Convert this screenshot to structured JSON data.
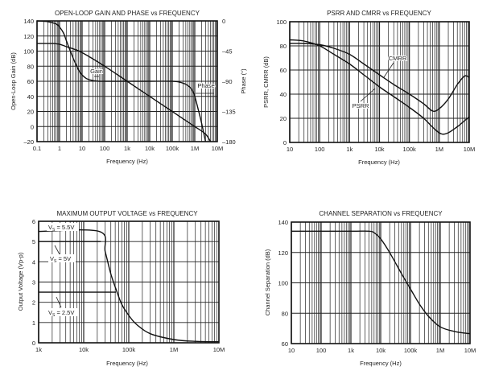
{
  "chart_data": [
    {
      "type": "line",
      "title": "OPEN-LOOP GAIN AND PHASE vs FREQUENCY",
      "xlabel": "Frequency (Hz)",
      "ylabel": "Open-Loop Gain (dB)",
      "y2label": "Phase (°)",
      "xscale": "log",
      "xlim": [
        0.1,
        10000000
      ],
      "ylim": [
        -20,
        140
      ],
      "y2lim": [
        -180,
        0
      ],
      "grid": true,
      "xticks": [
        "0.1",
        "1",
        "10",
        "100",
        "1k",
        "10k",
        "100k",
        "1M",
        "10M"
      ],
      "yticks": [
        "140",
        "120",
        "100",
        "80",
        "60",
        "40",
        "20",
        "0",
        "–20"
      ],
      "y2ticks": [
        "0",
        "–45",
        "–90",
        "–135",
        "–180"
      ],
      "series": [
        {
          "name": "Gain",
          "x": [
            0.1,
            0.3,
            0.7,
            1,
            1.5,
            2,
            3,
            5,
            8,
            15,
            30,
            60,
            100,
            1000,
            10000,
            100000,
            200000,
            400000,
            700000,
            1000000,
            1500000,
            2000000,
            3000000
          ],
          "y": [
            140,
            139,
            136,
            132,
            124,
            114,
            100,
            84,
            72,
            64,
            61,
            60,
            60,
            60,
            60,
            60,
            59,
            56,
            50,
            40,
            20,
            5,
            -20
          ]
        },
        {
          "name": "Phase",
          "x": [
            0.1,
            0.5,
            1,
            2,
            4,
            10,
            100,
            1000,
            10000,
            100000,
            1000000,
            3000000,
            5000000
          ],
          "y": [
            110,
            110,
            109,
            106,
            103,
            98,
            80,
            60,
            40,
            20,
            0,
            -10,
            -20
          ]
        }
      ],
      "annotations": [
        "Gain",
        "Phase"
      ]
    },
    {
      "type": "line",
      "title": "PSRR AND CMRR vs FREQUENCY",
      "xlabel": "Frequency (Hz)",
      "ylabel": "PSRR, CMRR (dB)",
      "xscale": "log",
      "xlim": [
        10,
        10000000
      ],
      "ylim": [
        0,
        100
      ],
      "grid": true,
      "xticks": [
        "10",
        "100",
        "1k",
        "10k",
        "100k",
        "1M",
        "10M"
      ],
      "yticks": [
        "100",
        "80",
        "60",
        "40",
        "20",
        "0"
      ],
      "series": [
        {
          "name": "CMRR",
          "x": [
            10,
            30,
            100,
            300,
            1000,
            3000,
            10000,
            30000,
            100000,
            300000,
            600000,
            1000000,
            2000000,
            4000000,
            7000000,
            10000000
          ],
          "y": [
            82,
            82,
            81,
            78,
            73,
            65,
            56,
            48,
            40,
            32,
            26,
            28,
            36,
            48,
            55,
            54
          ]
        },
        {
          "name": "PSRR",
          "x": [
            10,
            30,
            100,
            300,
            1000,
            3000,
            10000,
            30000,
            100000,
            300000,
            700000,
            1200000,
            2000000,
            4000000,
            7000000,
            10000000
          ],
          "y": [
            85,
            84,
            80,
            73,
            65,
            56,
            46,
            38,
            29,
            20,
            11,
            7,
            8,
            13,
            18,
            21
          ]
        }
      ],
      "annotations": [
        "CMRR",
        "PSRR"
      ]
    },
    {
      "type": "line",
      "title": "MAXIMUM OUTPUT VOLTAGE vs FREQUENCY",
      "xlabel": "Frequency (Hz)",
      "ylabel": "Output Voltage (Vp-p)",
      "xscale": "log",
      "xlim": [
        1000,
        10000000
      ],
      "ylim": [
        0,
        6
      ],
      "grid": true,
      "xticks": [
        "1k",
        "10k",
        "100k",
        "1M",
        "10M"
      ],
      "yticks": [
        "6",
        "5",
        "4",
        "3",
        "2",
        "1",
        "0"
      ],
      "series": [
        {
          "name": "VS = 5.5V",
          "x": [
            1000,
            22000,
            30000,
            40000,
            55000,
            70000,
            100000,
            150000,
            300000,
            1000000,
            3000000,
            10000000
          ],
          "y": [
            5.5,
            5.5,
            4.5,
            3.4,
            2.5,
            1.9,
            1.35,
            0.9,
            0.45,
            0.16,
            0.07,
            0.05
          ]
        },
        {
          "name": "VS = 5V",
          "x": [
            1000,
            24000
          ],
          "y": [
            5,
            5
          ]
        },
        {
          "name": "VS = 2.5V",
          "x": [
            1000,
            52000
          ],
          "y": [
            2.5,
            2.5
          ]
        }
      ],
      "annotations": [
        {
          "prefix": "V",
          "sub": "S",
          "rest": " = 5.5V"
        },
        {
          "prefix": "V",
          "sub": "S",
          "rest": " = 5V"
        },
        {
          "prefix": "V",
          "sub": "S",
          "rest": " = 2.5V"
        }
      ]
    },
    {
      "type": "line",
      "title": "CHANNEL SEPARATION vs FREQUENCY",
      "xlabel": "Frequency (Hz)",
      "ylabel": "Channel Separation (dB)",
      "xscale": "log",
      "xlim": [
        10,
        10000000
      ],
      "ylim": [
        60,
        140
      ],
      "grid": true,
      "xticks": [
        "10",
        "100",
        "1k",
        "10k",
        "100k",
        "1M",
        "10M"
      ],
      "yticks": [
        "140",
        "120",
        "100",
        "80",
        "60"
      ],
      "series": [
        {
          "name": "Channel Separation",
          "x": [
            10,
            1000,
            4000,
            6000,
            10000,
            20000,
            50000,
            100000,
            200000,
            400000,
            1000000,
            3000000,
            10000000
          ],
          "y": [
            134,
            134,
            134,
            133,
            129,
            120,
            106,
            96,
            86,
            78,
            71,
            68,
            66.5
          ]
        }
      ]
    }
  ]
}
